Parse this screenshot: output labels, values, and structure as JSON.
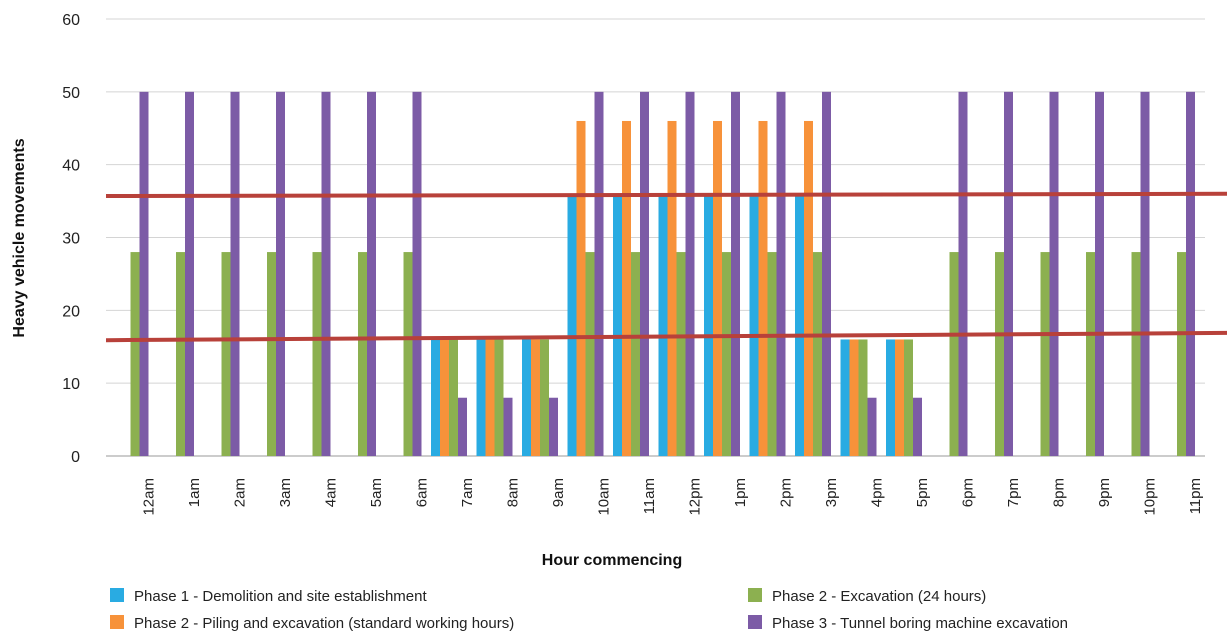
{
  "chart_data": {
    "type": "bar",
    "xlabel": "Hour commencing",
    "ylabel": "Heavy vehicle movements",
    "ylim": [
      0,
      60
    ],
    "yticks": [
      0,
      10,
      20,
      30,
      40,
      50,
      60
    ],
    "grid": true,
    "legend_position": "bottom",
    "categories": [
      "12am",
      "1am",
      "2am",
      "3am",
      "4am",
      "5am",
      "6am",
      "7am",
      "8am",
      "9am",
      "10am",
      "11am",
      "12pm",
      "1pm",
      "2pm",
      "3pm",
      "4pm",
      "5pm",
      "6pm",
      "7pm",
      "8pm",
      "9pm",
      "10pm",
      "11pm"
    ],
    "series": [
      {
        "name": "Phase 1 - Demolition and site establishment",
        "color": "#29abe2",
        "values": [
          0,
          0,
          0,
          0,
          0,
          0,
          0,
          16,
          16,
          16,
          36,
          36,
          36,
          36,
          36,
          36,
          16,
          16,
          0,
          0,
          0,
          0,
          0,
          0
        ]
      },
      {
        "name": "Phase 2 - Piling and excavation (standard working hours)",
        "color": "#f7923a",
        "values": [
          0,
          0,
          0,
          0,
          0,
          0,
          0,
          16,
          16,
          16,
          46,
          46,
          46,
          46,
          46,
          46,
          16,
          16,
          0,
          0,
          0,
          0,
          0,
          0
        ]
      },
      {
        "name": "Phase 2 - Excavation (24 hours)",
        "color": "#8cb050",
        "values": [
          28,
          28,
          28,
          28,
          28,
          28,
          28,
          16,
          16,
          16,
          28,
          28,
          28,
          28,
          28,
          28,
          16,
          16,
          28,
          28,
          28,
          28,
          28,
          28
        ]
      },
      {
        "name": "Phase 3 - Tunnel boring machine excavation",
        "color": "#7c5ba6",
        "values": [
          50,
          50,
          50,
          50,
          50,
          50,
          50,
          8,
          8,
          8,
          50,
          50,
          50,
          50,
          50,
          50,
          8,
          8,
          50,
          50,
          50,
          50,
          50,
          50
        ]
      }
    ],
    "annotations": [
      {
        "type": "red-line",
        "color": "#b8413a",
        "y_start": 35.7,
        "y_end": 36.0
      },
      {
        "type": "red-line",
        "color": "#b8413a",
        "y_start": 15.9,
        "y_end": 16.9
      }
    ]
  }
}
